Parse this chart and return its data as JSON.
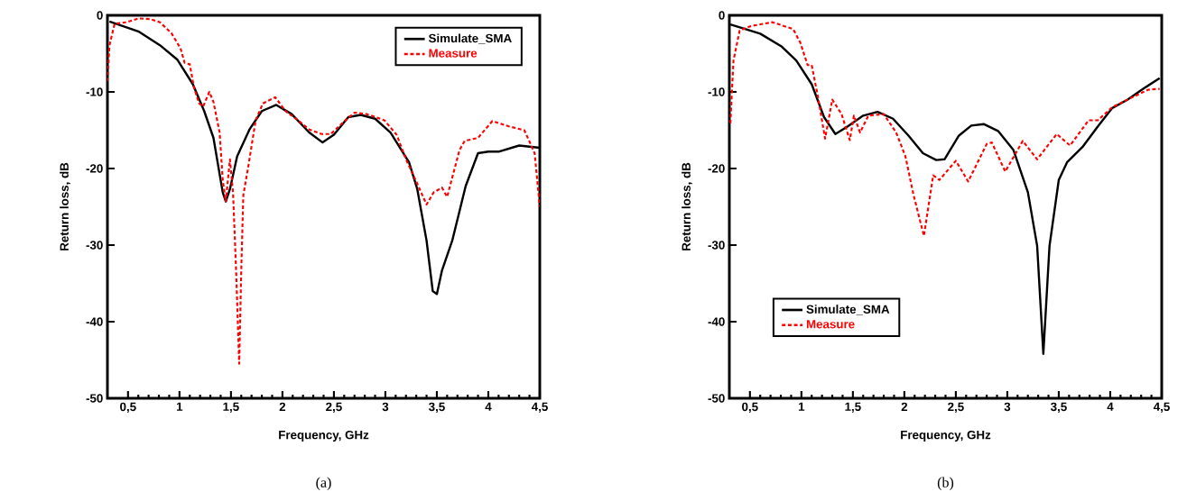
{
  "chart_data": [
    {
      "type": "line",
      "xlabel": "Frequency, GHz",
      "ylabel": "Return loss, dB",
      "annotations": [
        "(a)"
      ],
      "xlim": [
        0.3,
        4.5
      ],
      "ylim": [
        -50,
        0
      ],
      "xticks": [
        {
          "value": 0.5,
          "label": "0,5"
        },
        1,
        {
          "value": 1.5,
          "label": "1,5"
        },
        2,
        {
          "value": 2.5,
          "label": "2,5"
        },
        3,
        {
          "value": 3.5,
          "label": "3,5"
        },
        4,
        {
          "value": 4.5,
          "label": "4,5"
        }
      ],
      "yticks": [
        -50,
        -40,
        -30,
        -20,
        -10,
        0
      ],
      "legend": "top right",
      "grid": false,
      "marker": "none",
      "series": [
        {
          "name": "Simulate_SMA",
          "color": "#000000",
          "line_style": "solid",
          "x": [
            0.32,
            0.6,
            0.81,
            0.98,
            1.13,
            1.24,
            1.33,
            1.42,
            1.45,
            1.49,
            1.56,
            1.68,
            1.8,
            1.94,
            2.09,
            2.26,
            2.39,
            2.5,
            2.64,
            2.76,
            2.9,
            3.05,
            3.23,
            3.31,
            3.4,
            3.46,
            3.5,
            3.55,
            3.65,
            3.78,
            3.9,
            4.0,
            4.1,
            4.3,
            4.5
          ],
          "values": [
            -0.8,
            -2.1,
            -3.9,
            -5.8,
            -9.0,
            -12.5,
            -16,
            -23.1,
            -24.3,
            -22.7,
            -18.4,
            -14.9,
            -12.5,
            -11.7,
            -12.9,
            -15.3,
            -16.6,
            -15.6,
            -13.3,
            -13.0,
            -13.5,
            -15.3,
            -19.2,
            -22.7,
            -29.4,
            -36.0,
            -36.4,
            -33.3,
            -29.4,
            -22.3,
            -18.0,
            -17.8,
            -17.8,
            -17.0,
            -17.3
          ]
        },
        {
          "name": "Measure",
          "color": "#ff0000",
          "line_style": "dashed",
          "x": [
            0.3,
            0.32,
            0.37,
            0.49,
            0.6,
            0.72,
            0.81,
            0.92,
            1.01,
            1.05,
            1.1,
            1.14,
            1.19,
            1.23,
            1.29,
            1.33,
            1.39,
            1.42,
            1.45,
            1.49,
            1.52,
            1.55,
            1.58,
            1.6,
            1.62,
            1.67,
            1.74,
            1.81,
            1.93,
            2.03,
            2.15,
            2.26,
            2.38,
            2.47,
            2.58,
            2.7,
            2.82,
            2.99,
            3.11,
            3.2,
            3.28,
            3.4,
            3.47,
            3.55,
            3.6,
            3.72,
            3.77,
            3.9,
            4.04,
            4.2,
            4.35,
            4.45,
            4.5
          ],
          "values": [
            -8.6,
            -3.9,
            -1.1,
            -0.9,
            -0.4,
            -0.5,
            -0.9,
            -2.3,
            -4.3,
            -6.2,
            -6.4,
            -9.4,
            -11.5,
            -11.9,
            -10.0,
            -11.3,
            -15.3,
            -21.5,
            -24.3,
            -18.8,
            -23.1,
            -33.3,
            -45.5,
            -33.3,
            -23.5,
            -19.6,
            -13.7,
            -11.5,
            -10.7,
            -12.5,
            -13.7,
            -14.9,
            -15.5,
            -15.5,
            -14.1,
            -12.7,
            -12.9,
            -13.7,
            -15.6,
            -18.8,
            -21.1,
            -24.7,
            -23.1,
            -22.5,
            -23.7,
            -17.6,
            -16.4,
            -16.0,
            -13.8,
            -14.5,
            -15.0,
            -18.0,
            -25.0
          ]
        }
      ]
    },
    {
      "type": "line",
      "xlabel": "Frequency, GHz",
      "ylabel": "Return loss, dB",
      "annotations": [
        "(b)"
      ],
      "xlim": [
        0.3,
        4.5
      ],
      "ylim": [
        -50,
        0
      ],
      "xticks": [
        {
          "value": 0.5,
          "label": "0,5"
        },
        1,
        {
          "value": 1.5,
          "label": "1,5"
        },
        2,
        {
          "value": 2.5,
          "label": "2,5"
        },
        3,
        {
          "value": 3.5,
          "label": "3,5"
        },
        4,
        {
          "value": 4.5,
          "label": "4,5"
        }
      ],
      "yticks": [
        -50,
        -40,
        -30,
        -20,
        -10,
        0
      ],
      "legend": "bottom left",
      "grid": false,
      "marker": "none",
      "series": [
        {
          "name": "Simulate_SMA",
          "color": "#000000",
          "line_style": "solid",
          "x": [
            0.31,
            0.6,
            0.81,
            0.95,
            1.1,
            1.22,
            1.33,
            1.45,
            1.6,
            1.74,
            1.89,
            2.04,
            2.18,
            2.31,
            2.39,
            2.53,
            2.65,
            2.77,
            2.91,
            3.06,
            3.2,
            3.29,
            3.35,
            3.41,
            3.5,
            3.58,
            3.73,
            3.88,
            4.02,
            4.17,
            4.32,
            4.48
          ],
          "values": [
            -1.2,
            -2.4,
            -4.1,
            -5.9,
            -9.0,
            -13.3,
            -15.5,
            -14.5,
            -13.1,
            -12.6,
            -13.5,
            -15.7,
            -18.0,
            -18.9,
            -18.8,
            -15.7,
            -14.4,
            -14.2,
            -15.1,
            -17.6,
            -23.1,
            -30.1,
            -44.2,
            -30.1,
            -21.5,
            -19.2,
            -17.2,
            -14.5,
            -12.1,
            -11.0,
            -9.6,
            -8.2
          ]
        },
        {
          "name": "Measure",
          "color": "#ff0000",
          "line_style": "dashed",
          "x": [
            0.31,
            0.34,
            0.4,
            0.51,
            0.72,
            0.92,
            0.99,
            1.06,
            1.1,
            1.16,
            1.23,
            1.3,
            1.39,
            1.47,
            1.51,
            1.57,
            1.65,
            1.8,
            1.92,
            2.01,
            2.09,
            2.19,
            2.28,
            2.34,
            2.5,
            2.62,
            2.8,
            2.85,
            2.98,
            3.15,
            3.29,
            3.48,
            3.61,
            3.79,
            3.88,
            4.02,
            4.23,
            4.37,
            4.48
          ],
          "values": [
            -14.1,
            -5.9,
            -2.0,
            -1.4,
            -0.9,
            -1.8,
            -3.6,
            -6.5,
            -6.5,
            -10.6,
            -16.1,
            -11.0,
            -12.9,
            -16.3,
            -13.1,
            -15.3,
            -13.1,
            -12.9,
            -15.3,
            -18.4,
            -23.5,
            -28.8,
            -20.9,
            -21.5,
            -19.0,
            -21.7,
            -16.8,
            -16.6,
            -20.4,
            -16.4,
            -18.8,
            -15.5,
            -17.0,
            -13.7,
            -13.7,
            -12.0,
            -10.6,
            -9.7,
            -9.6
          ]
        }
      ]
    }
  ]
}
